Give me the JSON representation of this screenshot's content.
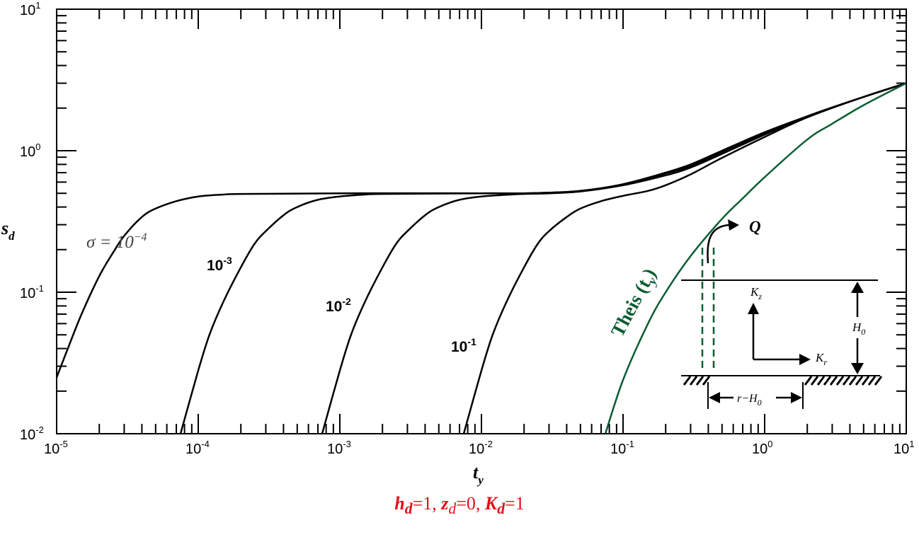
{
  "chart_data": {
    "type": "line",
    "x_scale": "log",
    "y_scale": "log",
    "xlim": [
      1e-05,
      10
    ],
    "ylim": [
      0.01,
      10
    ],
    "x_tick_labels": [
      {
        "base": "10",
        "exp": "-5"
      },
      {
        "base": "10",
        "exp": "-4"
      },
      {
        "base": "10",
        "exp": "-3"
      },
      {
        "base": "10",
        "exp": "-2"
      },
      {
        "base": "10",
        "exp": "-1"
      },
      {
        "base": "10",
        "exp": "0"
      },
      {
        "base": "10",
        "exp": "1"
      }
    ],
    "y_tick_labels": [
      {
        "base": "10",
        "exp": "-2"
      },
      {
        "base": "10",
        "exp": "-1"
      },
      {
        "base": "10",
        "exp": "0"
      },
      {
        "base": "10",
        "exp": "1"
      }
    ],
    "xlabel": "t",
    "xlabel_sub": "y",
    "ylabel": "s",
    "ylabel_sub": "d",
    "series": [
      {
        "name": "σ = 10",
        "name_sup": "−4",
        "color": "#000000",
        "x": [
          1e-05,
          1.2e-05,
          1.5e-05,
          2e-05,
          2.5e-05,
          3e-05,
          4e-05,
          5e-05,
          7e-05,
          0.0001,
          0.00015,
          0.0002,
          0.001,
          0.01,
          0.02,
          0.03,
          0.05,
          0.1,
          0.2,
          0.3,
          0.5,
          1,
          2,
          5,
          10
        ],
        "y": [
          0.025,
          0.04,
          0.07,
          0.13,
          0.19,
          0.25,
          0.34,
          0.39,
          0.44,
          0.475,
          0.49,
          0.495,
          0.5,
          0.5,
          0.5,
          0.505,
          0.52,
          0.58,
          0.7,
          0.8,
          1.0,
          1.35,
          1.75,
          2.4,
          3.0
        ]
      },
      {
        "name": "10",
        "name_sup": "-3",
        "color": "#000000",
        "x": [
          7.5e-05,
          0.0001,
          0.00012,
          0.00015,
          0.0002,
          0.00025,
          0.0003,
          0.0004,
          0.0005,
          0.0007,
          0.001,
          0.0015,
          0.002,
          0.01,
          0.02,
          0.03,
          0.05,
          0.1,
          0.2,
          0.3,
          0.5,
          1,
          2,
          5,
          10
        ],
        "y": [
          0.01,
          0.028,
          0.05,
          0.085,
          0.15,
          0.22,
          0.27,
          0.35,
          0.4,
          0.45,
          0.475,
          0.49,
          0.495,
          0.5,
          0.5,
          0.505,
          0.52,
          0.575,
          0.69,
          0.78,
          0.98,
          1.33,
          1.75,
          2.4,
          3.0
        ]
      },
      {
        "name": "10",
        "name_sup": "-2",
        "color": "#000000",
        "x": [
          0.00075,
          0.001,
          0.0012,
          0.0015,
          0.002,
          0.0025,
          0.003,
          0.004,
          0.005,
          0.007,
          0.01,
          0.015,
          0.02,
          0.03,
          0.05,
          0.1,
          0.2,
          0.3,
          0.5,
          1,
          2,
          5,
          10
        ],
        "y": [
          0.01,
          0.028,
          0.05,
          0.085,
          0.15,
          0.22,
          0.27,
          0.35,
          0.4,
          0.45,
          0.475,
          0.488,
          0.495,
          0.5,
          0.515,
          0.57,
          0.67,
          0.76,
          0.95,
          1.3,
          1.75,
          2.4,
          3.0
        ]
      },
      {
        "name": "10",
        "name_sup": "-1",
        "color": "#000000",
        "x": [
          0.0075,
          0.01,
          0.012,
          0.015,
          0.02,
          0.025,
          0.03,
          0.04,
          0.05,
          0.07,
          0.1,
          0.15,
          0.2,
          0.3,
          0.5,
          1,
          2,
          5,
          10
        ],
        "y": [
          0.01,
          0.028,
          0.05,
          0.085,
          0.15,
          0.22,
          0.27,
          0.34,
          0.39,
          0.44,
          0.48,
          0.52,
          0.57,
          0.68,
          0.89,
          1.25,
          1.72,
          2.4,
          3.0
        ]
      },
      {
        "name": "Theis (t",
        "name_sub": "y",
        "name_end": ")",
        "color": "#0b5d32",
        "x": [
          0.075,
          0.1,
          0.15,
          0.2,
          0.3,
          0.5,
          0.7,
          1,
          2,
          3,
          5,
          10
        ],
        "y": [
          0.01,
          0.024,
          0.06,
          0.1,
          0.18,
          0.33,
          0.46,
          0.65,
          1.2,
          1.55,
          2.1,
          3.0
        ]
      }
    ],
    "grid": false,
    "legend": "none"
  },
  "inset": {
    "q": "Q",
    "kz": "K",
    "kz_sub": "z",
    "kr": "K",
    "kr_sub": "r",
    "h0": "H",
    "h0_sub": "0",
    "r": "r−H",
    "r_sub": "0"
  },
  "caption": {
    "h_sym": "h",
    "h_sub": "d",
    "h_val": "=1,",
    "z_sym": "z",
    "z_sub": "d",
    "z_val": "=0,",
    "k_sym": "K",
    "k_sub": "d",
    "k_val": "=1"
  }
}
